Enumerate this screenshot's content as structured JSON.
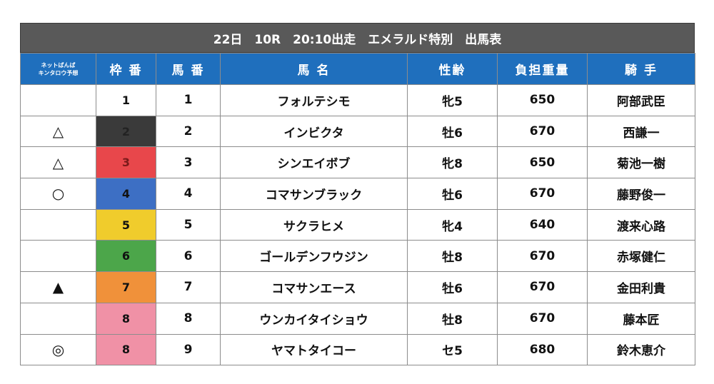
{
  "title": "22日　10R　20:10出走　エメラルド特別　出馬表",
  "headers": {
    "mark": "ネットばんば\nキンタロウ予想",
    "waku": "枠 番",
    "uma": "馬 番",
    "name": "馬 名",
    "sexage": "性齢",
    "weight": "負担重量",
    "jockey": "騎 手"
  },
  "waku_colors": {
    "1": "#ffffff",
    "2": "#3a3a3a",
    "3": "#e8474b",
    "4": "#3d6fc4",
    "5": "#f0cc2c",
    "6": "#4ca64a",
    "7": "#f0913a",
    "8": "#f091a6"
  },
  "rows": [
    {
      "mark": "",
      "waku": "1",
      "uma": "1",
      "name": "フォルテシモ",
      "sexage": "牝5",
      "weight": "650",
      "jockey": "阿部武臣"
    },
    {
      "mark": "△",
      "waku": "2",
      "uma": "2",
      "name": "インビクタ",
      "sexage": "牡6",
      "weight": "670",
      "jockey": "西謙一"
    },
    {
      "mark": "△",
      "waku": "3",
      "uma": "3",
      "name": "シンエイボブ",
      "sexage": "牝8",
      "weight": "650",
      "jockey": "菊池一樹"
    },
    {
      "mark": "○",
      "waku": "4",
      "uma": "4",
      "name": "コマサンブラック",
      "sexage": "牡6",
      "weight": "670",
      "jockey": "藤野俊一"
    },
    {
      "mark": "",
      "waku": "5",
      "uma": "5",
      "name": "サクラヒメ",
      "sexage": "牝4",
      "weight": "640",
      "jockey": "渡来心路"
    },
    {
      "mark": "",
      "waku": "6",
      "uma": "6",
      "name": "ゴールデンフウジン",
      "sexage": "牡8",
      "weight": "670",
      "jockey": "赤塚健仁"
    },
    {
      "mark": "▲",
      "waku": "7",
      "uma": "7",
      "name": "コマサンエース",
      "sexage": "牡6",
      "weight": "670",
      "jockey": "金田利貴"
    },
    {
      "mark": "",
      "waku": "8",
      "uma": "8",
      "name": "ウンカイタイショウ",
      "sexage": "牡8",
      "weight": "670",
      "jockey": "藤本匠"
    },
    {
      "mark": "◎",
      "waku": "8",
      "uma": "9",
      "name": "ヤマトタイコー",
      "sexage": "セ5",
      "weight": "680",
      "jockey": "鈴木恵介"
    }
  ]
}
